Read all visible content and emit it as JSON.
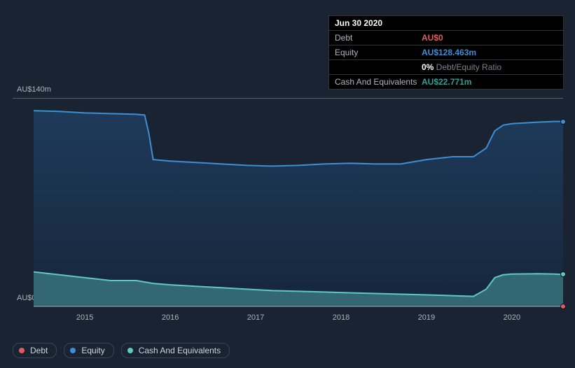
{
  "tooltip": {
    "date": "Jun 30 2020",
    "rows": [
      {
        "label": "Debt",
        "value": "AU$0",
        "cls": "v-debt"
      },
      {
        "label": "Equity",
        "value": "AU$128.463m",
        "cls": "v-equity"
      },
      {
        "label": "",
        "value_strong": "0%",
        "value_muted": " Debt/Equity Ratio",
        "cls": "ratio"
      },
      {
        "label": "Cash And Equivalents",
        "value": "AU$22.771m",
        "cls": "v-cash"
      }
    ]
  },
  "chart": {
    "type": "area",
    "background_color": "#1a2332",
    "plot_background_gradient": [
      "#1e3a5a",
      "#16263b"
    ],
    "y_axis": {
      "min": 0,
      "max": 140,
      "labels": [
        {
          "y": 140,
          "text": "AU$140m"
        },
        {
          "y": 0,
          "text": "AU$0"
        }
      ],
      "label_color": "#aeb4bd",
      "label_fontsize": 11
    },
    "x_axis": {
      "min": 2014.4,
      "max": 2020.6,
      "ticks": [
        2015,
        2016,
        2017,
        2018,
        2019,
        2020
      ],
      "label_color": "#aeb4bd",
      "label_fontsize": 11
    },
    "series": {
      "equity": {
        "color": "#3d8fd6",
        "fill": "rgba(61,143,214,0.28)",
        "line_width": 2,
        "data": [
          [
            2014.4,
            136
          ],
          [
            2014.7,
            135.5
          ],
          [
            2015.0,
            134.5
          ],
          [
            2015.3,
            134
          ],
          [
            2015.6,
            133.5
          ],
          [
            2015.7,
            133
          ],
          [
            2015.75,
            120
          ],
          [
            2015.8,
            102
          ],
          [
            2016.0,
            101
          ],
          [
            2016.3,
            100
          ],
          [
            2016.6,
            99
          ],
          [
            2016.9,
            98
          ],
          [
            2017.2,
            97.5
          ],
          [
            2017.5,
            98
          ],
          [
            2017.8,
            99
          ],
          [
            2018.1,
            99.5
          ],
          [
            2018.4,
            99
          ],
          [
            2018.7,
            99
          ],
          [
            2019.0,
            102
          ],
          [
            2019.3,
            104
          ],
          [
            2019.55,
            104
          ],
          [
            2019.7,
            110
          ],
          [
            2019.8,
            122
          ],
          [
            2019.9,
            126
          ],
          [
            2020.0,
            127
          ],
          [
            2020.3,
            128
          ],
          [
            2020.5,
            128.5
          ],
          [
            2020.6,
            128.5
          ]
        ]
      },
      "cash": {
        "color": "#5ec9c0",
        "fill": "rgba(94,201,192,0.4)",
        "line_width": 2,
        "data": [
          [
            2014.4,
            24
          ],
          [
            2014.7,
            22
          ],
          [
            2015.0,
            20
          ],
          [
            2015.3,
            18
          ],
          [
            2015.6,
            18
          ],
          [
            2015.8,
            16
          ],
          [
            2016.0,
            15
          ],
          [
            2016.3,
            14
          ],
          [
            2016.6,
            13
          ],
          [
            2016.9,
            12
          ],
          [
            2017.2,
            11
          ],
          [
            2017.5,
            10.5
          ],
          [
            2017.8,
            10
          ],
          [
            2018.1,
            9.5
          ],
          [
            2018.4,
            9
          ],
          [
            2018.7,
            8.5
          ],
          [
            2019.0,
            8
          ],
          [
            2019.3,
            7.5
          ],
          [
            2019.55,
            7
          ],
          [
            2019.7,
            12
          ],
          [
            2019.8,
            20
          ],
          [
            2019.9,
            22
          ],
          [
            2020.0,
            22.5
          ],
          [
            2020.3,
            22.7
          ],
          [
            2020.5,
            22.5
          ],
          [
            2020.6,
            22.2
          ]
        ]
      },
      "debt": {
        "color": "#e35c5c",
        "fill": "rgba(227,92,92,0.35)",
        "line_width": 2,
        "data": [
          [
            2014.4,
            0
          ],
          [
            2015.0,
            0
          ],
          [
            2016.0,
            0
          ],
          [
            2017.0,
            0
          ],
          [
            2018.0,
            0
          ],
          [
            2019.0,
            0
          ],
          [
            2020.0,
            0
          ],
          [
            2020.6,
            0
          ]
        ]
      }
    },
    "end_markers": [
      {
        "series": "equity",
        "color": "#3d8fd6"
      },
      {
        "series": "cash",
        "color": "#5ec9c0"
      },
      {
        "series": "debt",
        "color": "#e35c5c"
      }
    ]
  },
  "legend": [
    {
      "key": "debt",
      "label": "Debt",
      "dot": "d-debt"
    },
    {
      "key": "equity",
      "label": "Equity",
      "dot": "d-equity"
    },
    {
      "key": "cash",
      "label": "Cash And Equivalents",
      "dot": "d-cash"
    }
  ]
}
